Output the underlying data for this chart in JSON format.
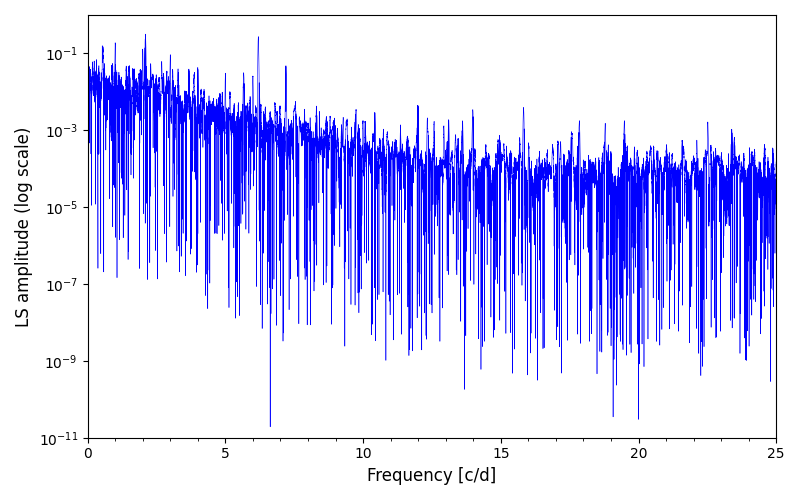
{
  "title": "",
  "xlabel": "Frequency [c/d]",
  "ylabel": "LS amplitude (log scale)",
  "line_color": "#0000ff",
  "xlim": [
    0,
    25
  ],
  "ylim": [
    1e-11,
    1.0
  ],
  "figsize": [
    8.0,
    5.0
  ],
  "dpi": 100,
  "freq_max": 25.0,
  "n_points": 60000,
  "seed": 777,
  "background_color": "#ffffff"
}
